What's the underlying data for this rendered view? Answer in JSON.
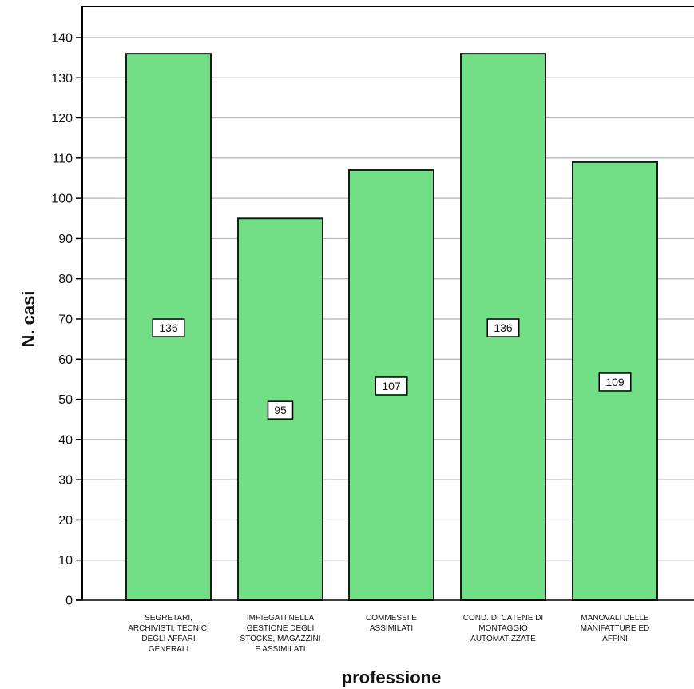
{
  "chart_data": {
    "type": "bar",
    "categories": [
      [
        "SEGRETARI,",
        "ARCHIVISTI, TECNICI",
        "DEGLI AFFARI",
        "GENERALI"
      ],
      [
        "IMPIEGATI NELLA",
        "GESTIONE DEGLI",
        "STOCKS, MAGAZZINI",
        "E ASSIMILATI"
      ],
      [
        "COMMESSI E",
        "ASSIMILATI"
      ],
      [
        "COND. DI CATENE DI",
        "MONTAGGIO",
        "AUTOMATIZZATE"
      ],
      [
        "MANOVALI DELLE",
        "MANIFATTURE ED",
        "AFFINI"
      ]
    ],
    "values": [
      136,
      95,
      107,
      136,
      109
    ],
    "data_labels": [
      "136",
      "95",
      "107",
      "136",
      "109"
    ],
    "xlabel": "professione",
    "ylabel": "N. casi",
    "ylim": [
      0,
      140
    ],
    "yticks": [
      0,
      10,
      20,
      30,
      40,
      50,
      60,
      70,
      80,
      90,
      100,
      110,
      120,
      130,
      140
    ],
    "grid": true,
    "colors": {
      "bar_fill": "#72de86",
      "bar_stroke": "#1a1a1a",
      "grid": "#b4b4b4",
      "axis": "#000000"
    }
  }
}
